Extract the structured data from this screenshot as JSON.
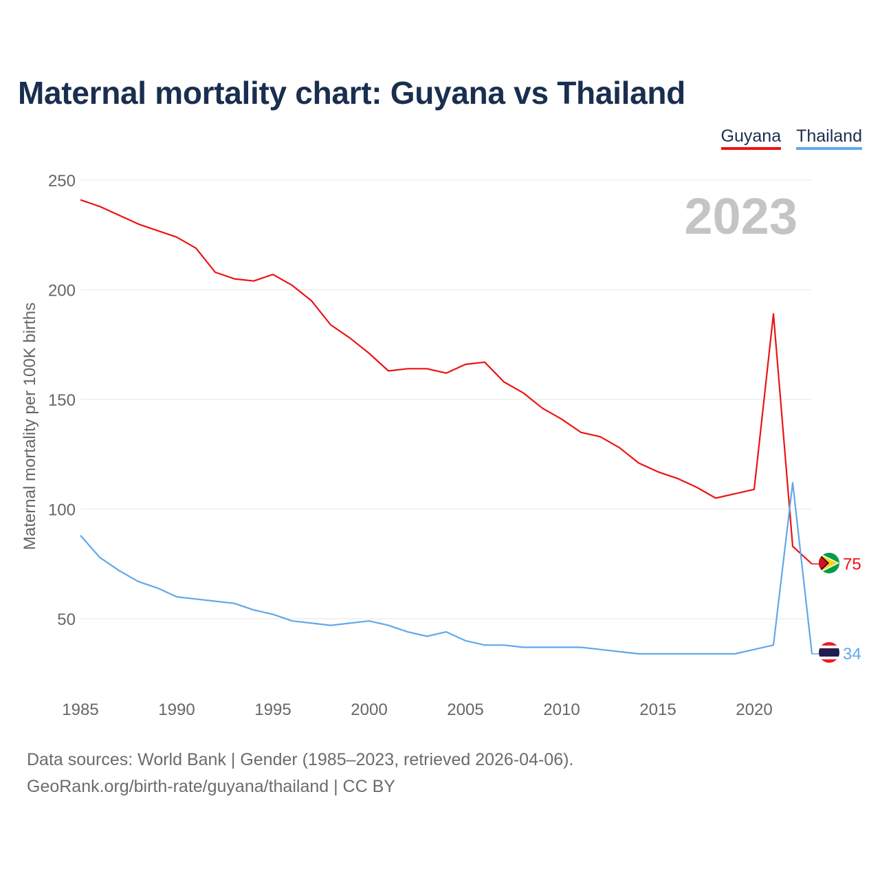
{
  "page": {
    "title": "Maternal mortality chart: Guyana vs Thailand",
    "footer_line1": "Data sources: World Bank | Gender (1985–2023, retrieved 2026-04-06).",
    "footer_line2": "GeoRank.org/birth-rate/guyana/thailand | CC BY"
  },
  "legend": [
    {
      "name": "Guyana",
      "color": "#ee1111"
    },
    {
      "name": "Thailand",
      "color": "#5fa8ea"
    }
  ],
  "colors": {
    "grid": "#e6e6e6",
    "tick_text": "#666666",
    "year_watermark": "#c4c4c4"
  },
  "flags": [
    {
      "country": "Guyana",
      "icon": "guyana-flag-icon"
    },
    {
      "country": "Thailand",
      "icon": "thailand-flag-icon"
    }
  ],
  "chart_data": {
    "type": "line",
    "title": "Maternal mortality chart: Guyana vs Thailand",
    "xlabel": "",
    "ylabel": "Maternal mortality per 100K births",
    "watermark_year": "2023",
    "x": [
      1985,
      1986,
      1987,
      1988,
      1989,
      1990,
      1991,
      1992,
      1993,
      1994,
      1995,
      1996,
      1997,
      1998,
      1999,
      2000,
      2001,
      2002,
      2003,
      2004,
      2005,
      2006,
      2007,
      2008,
      2009,
      2010,
      2011,
      2012,
      2013,
      2014,
      2015,
      2016,
      2017,
      2018,
      2019,
      2020,
      2021,
      2022,
      2023
    ],
    "xlim": [
      1985,
      2023.8
    ],
    "ylim": [
      16,
      260
    ],
    "x_ticks": [
      1985,
      1990,
      1995,
      2000,
      2005,
      2010,
      2015,
      2020
    ],
    "y_ticks": [
      50,
      100,
      150,
      200,
      250
    ],
    "grid": true,
    "legend_position": "top-right",
    "series": [
      {
        "name": "Guyana",
        "color": "#ee1111",
        "end_label": "75",
        "values": [
          241,
          238,
          234,
          230,
          227,
          224,
          219,
          208,
          205,
          204,
          207,
          202,
          195,
          184,
          178,
          171,
          163,
          164,
          164,
          162,
          166,
          167,
          158,
          153,
          146,
          141,
          135,
          133,
          128,
          121,
          117,
          114,
          110,
          105,
          107,
          109,
          189,
          83,
          75
        ]
      },
      {
        "name": "Thailand",
        "color": "#5fa8ea",
        "end_label": "34",
        "values": [
          88,
          78,
          72,
          67,
          64,
          60,
          59,
          58,
          57,
          54,
          52,
          49,
          48,
          47,
          48,
          49,
          47,
          44,
          42,
          44,
          40,
          38,
          38,
          37,
          37,
          37,
          37,
          36,
          35,
          34,
          34,
          34,
          34,
          34,
          34,
          36,
          38,
          112,
          34
        ]
      }
    ]
  }
}
